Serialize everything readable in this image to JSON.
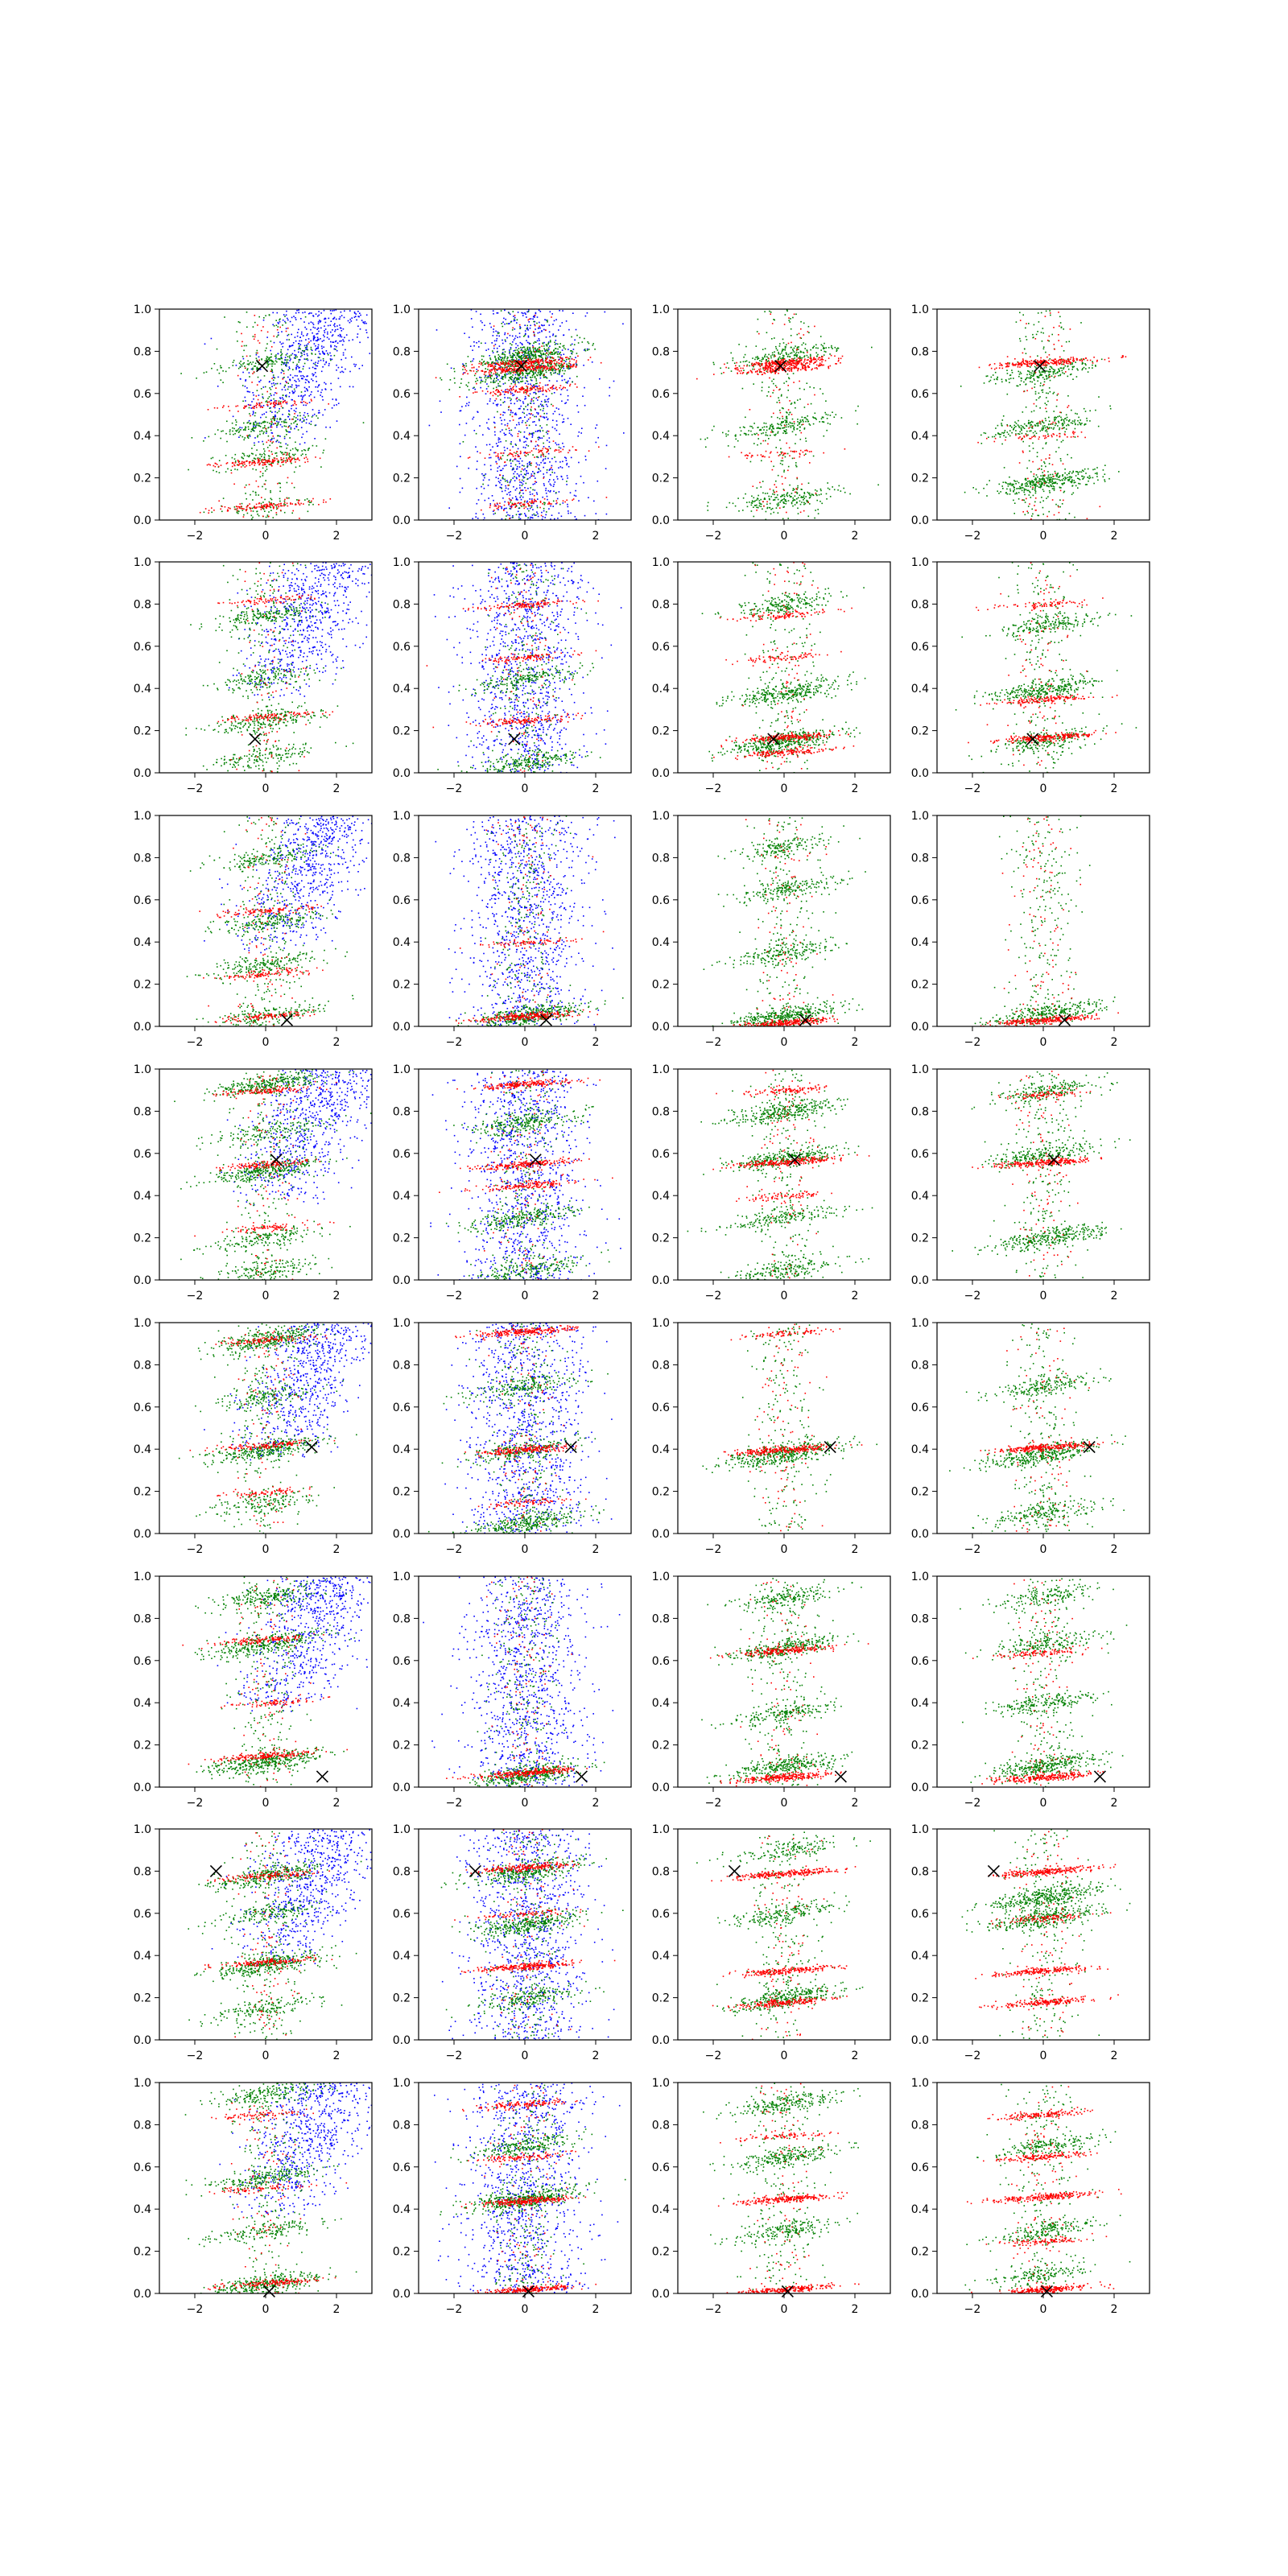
{
  "colors": {
    "background": "#ffffff",
    "series_blue": "#0000ff",
    "series_green": "#008000",
    "series_red": "#ff0000",
    "marker": "#000000",
    "axes": "#000000"
  },
  "chart_data": {
    "type": "scatter",
    "grid": false,
    "legend": "none",
    "xlim": [
      -3,
      3
    ],
    "ylim": [
      0,
      1
    ],
    "x_ticks": [
      -2,
      0,
      2
    ],
    "x_tick_labels": [
      "−2",
      "0",
      "2"
    ],
    "y_ticks": [
      0.0,
      0.2,
      0.4,
      0.6,
      0.8,
      1.0
    ],
    "y_tick_labels": [
      "0.0",
      "0.2",
      "0.4",
      "0.6",
      "0.8",
      "1.0"
    ],
    "layout": {
      "rows": 8,
      "cols": 4
    },
    "marker_x": [
      -0.1,
      -0.3,
      0.6,
      0.3,
      1.3,
      1.6,
      -1.4,
      0.1
    ],
    "marker_y": [
      0.73,
      0.16,
      0.03,
      0.57,
      0.41,
      0.05,
      0.8,
      0.01
    ],
    "panels": [
      {
        "row": 0,
        "col": 0,
        "blue": "upper",
        "green": [
          {
            "y": 0.3,
            "w": 0.3
          },
          {
            "y": 0.07,
            "w": 0.18
          },
          {
            "y": 0.75,
            "w": 0.4
          },
          {
            "y": 0.45,
            "w": 0.4
          }
        ],
        "red": [
          {
            "y": 0.28,
            "w": 0.6
          },
          {
            "y": 0.07,
            "w": 0.5
          },
          {
            "y": 0.55,
            "w": 0.3
          }
        ]
      },
      {
        "row": 0,
        "col": 1,
        "blue": "full",
        "green": [
          {
            "y": 0.78,
            "w": 1.0
          },
          {
            "y": 0.7,
            "w": 0.9
          }
        ],
        "red": [
          {
            "y": 0.75,
            "w": 0.8
          },
          {
            "y": 0.72,
            "w": 0.8
          },
          {
            "y": 0.62,
            "w": 0.5
          },
          {
            "y": 0.32,
            "w": 0.3
          },
          {
            "y": 0.08,
            "w": 0.3
          }
        ]
      },
      {
        "row": 0,
        "col": 2,
        "blue": "none",
        "green": [
          {
            "y": 0.78,
            "w": 0.5
          },
          {
            "y": 0.45,
            "w": 0.5
          },
          {
            "y": 0.1,
            "w": 0.5
          }
        ],
        "red": [
          {
            "y": 0.75,
            "w": 1.0
          },
          {
            "y": 0.72,
            "w": 0.8
          },
          {
            "y": 0.32,
            "w": 0.2
          }
        ]
      },
      {
        "row": 0,
        "col": 3,
        "blue": "none",
        "green": [
          {
            "y": 0.18,
            "w": 0.9
          },
          {
            "y": 0.7,
            "w": 0.5
          },
          {
            "y": 0.45,
            "w": 0.5
          }
        ],
        "red": [
          {
            "y": 0.75,
            "w": 1.0
          },
          {
            "y": 0.4,
            "w": 0.2
          }
        ]
      },
      {
        "row": 1,
        "col": 0,
        "blue": "upper",
        "green": [
          {
            "y": 0.25,
            "w": 0.5
          },
          {
            "y": 0.75,
            "w": 0.5
          },
          {
            "y": 0.45,
            "w": 0.4
          },
          {
            "y": 0.08,
            "w": 0.4
          }
        ],
        "red": [
          {
            "y": 0.27,
            "w": 0.4
          },
          {
            "y": 0.82,
            "w": 0.3
          }
        ]
      },
      {
        "row": 1,
        "col": 1,
        "blue": "full",
        "green": [
          {
            "y": 0.05,
            "w": 0.6
          },
          {
            "y": 0.45,
            "w": 0.5
          }
        ],
        "red": [
          {
            "y": 0.8,
            "w": 0.5
          },
          {
            "y": 0.25,
            "w": 0.5
          },
          {
            "y": 0.55,
            "w": 0.4
          }
        ]
      },
      {
        "row": 1,
        "col": 2,
        "blue": "none",
        "green": [
          {
            "y": 0.15,
            "w": 1.0
          },
          {
            "y": 0.38,
            "w": 0.8
          },
          {
            "y": 0.8,
            "w": 0.5
          }
        ],
        "red": [
          {
            "y": 0.17,
            "w": 0.8
          },
          {
            "y": 0.1,
            "w": 0.6
          },
          {
            "y": 0.75,
            "w": 0.4
          },
          {
            "y": 0.55,
            "w": 0.3
          }
        ]
      },
      {
        "row": 1,
        "col": 3,
        "blue": "none",
        "green": [
          {
            "y": 0.4,
            "w": 0.8
          },
          {
            "y": 0.15,
            "w": 0.5
          },
          {
            "y": 0.7,
            "w": 0.5
          }
        ],
        "red": [
          {
            "y": 0.17,
            "w": 0.9
          },
          {
            "y": 0.35,
            "w": 0.6
          },
          {
            "y": 0.8,
            "w": 0.3
          }
        ]
      },
      {
        "row": 2,
        "col": 0,
        "blue": "upper",
        "green": [
          {
            "y": 0.5,
            "w": 0.5
          },
          {
            "y": 0.3,
            "w": 0.5
          },
          {
            "y": 0.8,
            "w": 0.4
          },
          {
            "y": 0.05,
            "w": 0.5
          }
        ],
        "red": [
          {
            "y": 0.55,
            "w": 0.4
          },
          {
            "y": 0.25,
            "w": 0.4
          },
          {
            "y": 0.05,
            "w": 0.4
          }
        ]
      },
      {
        "row": 2,
        "col": 1,
        "blue": "full",
        "green": [
          {
            "y": 0.05,
            "w": 1.0
          }
        ],
        "red": [
          {
            "y": 0.05,
            "w": 1.0
          },
          {
            "y": 0.4,
            "w": 0.3
          }
        ]
      },
      {
        "row": 2,
        "col": 2,
        "blue": "none",
        "green": [
          {
            "y": 0.05,
            "w": 1.0
          },
          {
            "y": 0.35,
            "w": 0.5
          },
          {
            "y": 0.65,
            "w": 0.5
          },
          {
            "y": 0.85,
            "w": 0.4
          }
        ],
        "red": [
          {
            "y": 0.02,
            "w": 1.0
          }
        ]
      },
      {
        "row": 2,
        "col": 3,
        "blue": "none",
        "green": [
          {
            "y": 0.06,
            "w": 0.8
          }
        ],
        "red": [
          {
            "y": 0.03,
            "w": 1.0
          }
        ]
      },
      {
        "row": 3,
        "col": 0,
        "blue": "upper",
        "green": [
          {
            "y": 0.93,
            "w": 0.8
          },
          {
            "y": 0.52,
            "w": 0.8
          },
          {
            "y": 0.7,
            "w": 0.4
          },
          {
            "y": 0.2,
            "w": 0.4
          },
          {
            "y": 0.05,
            "w": 0.4
          }
        ],
        "red": [
          {
            "y": 0.55,
            "w": 0.5
          },
          {
            "y": 0.9,
            "w": 0.5
          },
          {
            "y": 0.25,
            "w": 0.3
          }
        ]
      },
      {
        "row": 3,
        "col": 1,
        "blue": "full",
        "green": [
          {
            "y": 0.3,
            "w": 0.6
          },
          {
            "y": 0.75,
            "w": 0.6
          },
          {
            "y": 0.05,
            "w": 0.5
          }
        ],
        "red": [
          {
            "y": 0.93,
            "w": 0.8
          },
          {
            "y": 0.55,
            "w": 0.8
          },
          {
            "y": 0.45,
            "w": 0.6
          }
        ]
      },
      {
        "row": 3,
        "col": 2,
        "blue": "none",
        "green": [
          {
            "y": 0.8,
            "w": 0.8
          },
          {
            "y": 0.58,
            "w": 0.8
          },
          {
            "y": 0.3,
            "w": 0.5
          },
          {
            "y": 0.05,
            "w": 0.5
          }
        ],
        "red": [
          {
            "y": 0.56,
            "w": 1.0
          },
          {
            "y": 0.9,
            "w": 0.4
          },
          {
            "y": 0.4,
            "w": 0.3
          }
        ]
      },
      {
        "row": 3,
        "col": 3,
        "blue": "none",
        "green": [
          {
            "y": 0.2,
            "w": 0.8
          },
          {
            "y": 0.6,
            "w": 0.6
          },
          {
            "y": 0.9,
            "w": 0.5
          }
        ],
        "red": [
          {
            "y": 0.56,
            "w": 1.0
          },
          {
            "y": 0.88,
            "w": 0.3
          }
        ]
      },
      {
        "row": 4,
        "col": 0,
        "blue": "upper",
        "green": [
          {
            "y": 0.92,
            "w": 0.8
          },
          {
            "y": 0.4,
            "w": 0.8
          },
          {
            "y": 0.65,
            "w": 0.4
          },
          {
            "y": 0.15,
            "w": 0.4
          }
        ],
        "red": [
          {
            "y": 0.42,
            "w": 0.5
          },
          {
            "y": 0.92,
            "w": 0.4
          },
          {
            "y": 0.2,
            "w": 0.3
          }
        ]
      },
      {
        "row": 4,
        "col": 1,
        "blue": "full",
        "green": [
          {
            "y": 0.05,
            "w": 0.8
          },
          {
            "y": 0.4,
            "w": 0.5
          },
          {
            "y": 0.7,
            "w": 0.5
          }
        ],
        "red": [
          {
            "y": 0.96,
            "w": 0.9
          },
          {
            "y": 0.4,
            "w": 0.8
          },
          {
            "y": 0.15,
            "w": 0.3
          }
        ]
      },
      {
        "row": 4,
        "col": 2,
        "blue": "none",
        "green": [
          {
            "y": 0.38,
            "w": 1.0
          }
        ],
        "red": [
          {
            "y": 0.4,
            "w": 1.0
          },
          {
            "y": 0.95,
            "w": 0.3
          }
        ]
      },
      {
        "row": 4,
        "col": 3,
        "blue": "none",
        "green": [
          {
            "y": 0.38,
            "w": 0.9
          },
          {
            "y": 0.7,
            "w": 0.5
          },
          {
            "y": 0.1,
            "w": 0.5
          }
        ],
        "red": [
          {
            "y": 0.41,
            "w": 1.0
          }
        ]
      },
      {
        "row": 5,
        "col": 0,
        "blue": "upper",
        "green": [
          {
            "y": 0.12,
            "w": 1.0
          },
          {
            "y": 0.68,
            "w": 0.8
          },
          {
            "y": 0.9,
            "w": 0.6
          }
        ],
        "red": [
          {
            "y": 0.15,
            "w": 0.7
          },
          {
            "y": 0.7,
            "w": 0.5
          },
          {
            "y": 0.4,
            "w": 0.3
          }
        ]
      },
      {
        "row": 5,
        "col": 1,
        "blue": "full",
        "green": [
          {
            "y": 0.06,
            "w": 1.0
          }
        ],
        "red": [
          {
            "y": 0.07,
            "w": 1.0
          }
        ]
      },
      {
        "row": 5,
        "col": 2,
        "blue": "none",
        "green": [
          {
            "y": 0.66,
            "w": 0.8
          },
          {
            "y": 0.1,
            "w": 0.8
          },
          {
            "y": 0.35,
            "w": 0.5
          },
          {
            "y": 0.9,
            "w": 0.5
          }
        ],
        "red": [
          {
            "y": 0.65,
            "w": 0.8
          },
          {
            "y": 0.05,
            "w": 1.0
          }
        ]
      },
      {
        "row": 5,
        "col": 3,
        "blue": "none",
        "green": [
          {
            "y": 0.1,
            "w": 0.9
          },
          {
            "y": 0.68,
            "w": 0.5
          },
          {
            "y": 0.4,
            "w": 0.5
          },
          {
            "y": 0.9,
            "w": 0.4
          }
        ],
        "red": [
          {
            "y": 0.05,
            "w": 1.0
          },
          {
            "y": 0.64,
            "w": 0.4
          }
        ]
      },
      {
        "row": 6,
        "col": 0,
        "blue": "upper",
        "green": [
          {
            "y": 0.36,
            "w": 0.9
          },
          {
            "y": 0.78,
            "w": 0.7
          },
          {
            "y": 0.6,
            "w": 0.4
          },
          {
            "y": 0.15,
            "w": 0.4
          }
        ],
        "red": [
          {
            "y": 0.37,
            "w": 0.6
          },
          {
            "y": 0.78,
            "w": 0.5
          }
        ]
      },
      {
        "row": 6,
        "col": 1,
        "blue": "full",
        "green": [
          {
            "y": 0.8,
            "w": 0.8
          },
          {
            "y": 0.55,
            "w": 0.8
          },
          {
            "y": 0.2,
            "w": 0.5
          }
        ],
        "red": [
          {
            "y": 0.35,
            "w": 1.0
          },
          {
            "y": 0.82,
            "w": 0.8
          },
          {
            "y": 0.6,
            "w": 0.3
          }
        ]
      },
      {
        "row": 6,
        "col": 2,
        "blue": "none",
        "green": [
          {
            "y": 0.2,
            "w": 0.8
          },
          {
            "y": 0.6,
            "w": 0.5
          },
          {
            "y": 0.9,
            "w": 0.4
          }
        ],
        "red": [
          {
            "y": 0.79,
            "w": 1.0
          },
          {
            "y": 0.33,
            "w": 0.8
          },
          {
            "y": 0.18,
            "w": 0.8
          }
        ]
      },
      {
        "row": 6,
        "col": 3,
        "blue": "none",
        "green": [
          {
            "y": 0.68,
            "w": 1.0
          },
          {
            "y": 0.58,
            "w": 0.8
          }
        ],
        "red": [
          {
            "y": 0.8,
            "w": 1.0
          },
          {
            "y": 0.33,
            "w": 0.8
          },
          {
            "y": 0.18,
            "w": 0.8
          },
          {
            "y": 0.58,
            "w": 0.4
          }
        ]
      },
      {
        "row": 7,
        "col": 0,
        "blue": "upper",
        "green": [
          {
            "y": 0.05,
            "w": 0.8
          },
          {
            "y": 0.55,
            "w": 0.6
          },
          {
            "y": 0.95,
            "w": 0.5
          },
          {
            "y": 0.3,
            "w": 0.4
          }
        ],
        "red": [
          {
            "y": 0.05,
            "w": 0.6
          },
          {
            "y": 0.5,
            "w": 0.3
          },
          {
            "y": 0.85,
            "w": 0.3
          }
        ]
      },
      {
        "row": 7,
        "col": 1,
        "blue": "full",
        "green": [
          {
            "y": 0.45,
            "w": 1.0
          },
          {
            "y": 0.7,
            "w": 0.6
          }
        ],
        "red": [
          {
            "y": 0.44,
            "w": 1.0
          },
          {
            "y": 0.02,
            "w": 1.0
          },
          {
            "y": 0.9,
            "w": 0.5
          },
          {
            "y": 0.65,
            "w": 0.4
          }
        ]
      },
      {
        "row": 7,
        "col": 2,
        "blue": "none",
        "green": [
          {
            "y": 0.9,
            "w": 0.6
          },
          {
            "y": 0.65,
            "w": 0.6
          },
          {
            "y": 0.3,
            "w": 0.5
          }
        ],
        "red": [
          {
            "y": 0.45,
            "w": 0.9
          },
          {
            "y": 0.02,
            "w": 1.0
          },
          {
            "y": 0.75,
            "w": 0.3
          }
        ]
      },
      {
        "row": 7,
        "col": 3,
        "blue": "none",
        "green": [
          {
            "y": 0.7,
            "w": 0.5
          },
          {
            "y": 0.3,
            "w": 0.5
          },
          {
            "y": 0.1,
            "w": 0.4
          }
        ],
        "red": [
          {
            "y": 0.46,
            "w": 0.9
          },
          {
            "y": 0.02,
            "w": 1.0
          },
          {
            "y": 0.85,
            "w": 0.6
          },
          {
            "y": 0.65,
            "w": 0.6
          },
          {
            "y": 0.25,
            "w": 0.4
          }
        ]
      }
    ]
  }
}
